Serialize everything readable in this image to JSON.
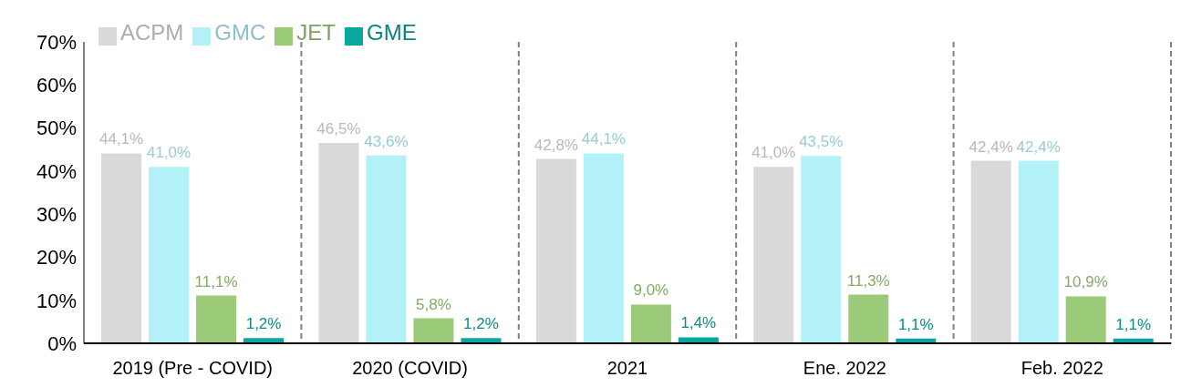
{
  "chart_data": {
    "type": "bar",
    "categories": [
      "2019 (Pre - COVID)",
      "2020 (COVID)",
      "2021",
      "Ene. 2022",
      "Feb. 2022"
    ],
    "series": [
      {
        "name": "ACPM",
        "color": "#d9d9d9",
        "values": [
          44.1,
          46.5,
          42.8,
          41.0,
          42.4
        ],
        "value_labels": [
          "44,1%",
          "46,5%",
          "42,8%",
          "41,0%",
          "42,4%"
        ]
      },
      {
        "name": "GMC",
        "color": "#b3f1f8",
        "values": [
          41.0,
          43.6,
          44.1,
          43.5,
          42.4
        ],
        "value_labels": [
          "41,0%",
          "43,6%",
          "44,1%",
          "43,5%",
          "42,4%"
        ]
      },
      {
        "name": "JET",
        "color": "#9bca78",
        "values": [
          11.1,
          5.8,
          9.0,
          11.3,
          10.9
        ],
        "value_labels": [
          "11,1%",
          "5,8%",
          "9,0%",
          "11,3%",
          "10,9%"
        ]
      },
      {
        "name": "GME",
        "color": "#0aa6a0",
        "values": [
          1.2,
          1.2,
          1.4,
          1.1,
          1.1
        ],
        "value_labels": [
          "1,2%",
          "1,2%",
          "1,4%",
          "1,1%",
          "1,1%"
        ]
      }
    ],
    "ylim": [
      0,
      70
    ],
    "yticks": [
      {
        "value": 0,
        "label": "0%"
      },
      {
        "value": 10,
        "label": "10%"
      },
      {
        "value": 20,
        "label": "20%"
      },
      {
        "value": 30,
        "label": "30%"
      },
      {
        "value": 40,
        "label": "40%"
      },
      {
        "value": 50,
        "label": "50%"
      },
      {
        "value": 60,
        "label": "60%"
      },
      {
        "value": 70,
        "label": "70%"
      }
    ],
    "grid": "x",
    "legend": "top left"
  }
}
